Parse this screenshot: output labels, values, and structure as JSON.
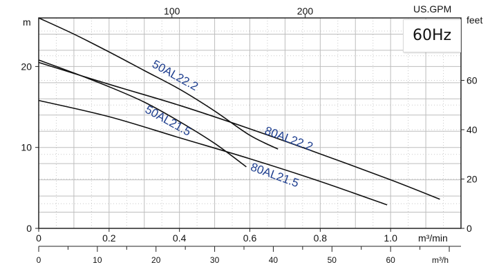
{
  "chart_data": {
    "type": "line",
    "frequency_label": "60Hz",
    "axes": {
      "y_left": {
        "label": "m",
        "ticks": [
          "0",
          "10",
          "20"
        ],
        "range": [
          0,
          26
        ]
      },
      "y_right": {
        "label": "feet",
        "ticks": [
          "0",
          "20",
          "40",
          "60"
        ]
      },
      "x_bottom_main": {
        "label": "m³/min",
        "ticks": [
          "0",
          "0.2",
          "0.4",
          "0.6",
          "0.8",
          "1.0"
        ],
        "range": [
          0,
          1.2
        ]
      },
      "x_bottom_secondary": {
        "label": "m³/h",
        "ticks": [
          "0",
          "10",
          "20",
          "30",
          "40",
          "50",
          "60"
        ]
      },
      "x_top": {
        "label": "US.GPM",
        "ticks": [
          "100",
          "200"
        ]
      }
    },
    "grid": true,
    "series": [
      {
        "name": "50AL22.2",
        "label": "50AL22.2",
        "color": "#1f2a44",
        "x": [
          0.0,
          0.1,
          0.2,
          0.3,
          0.4,
          0.5,
          0.6,
          0.68
        ],
        "y": [
          26.0,
          24.0,
          21.8,
          19.5,
          17.2,
          14.5,
          11.5,
          9.8
        ]
      },
      {
        "name": "50AL21.5",
        "label": "50AL21.5",
        "color": "#1f2a44",
        "x": [
          0.0,
          0.1,
          0.2,
          0.3,
          0.4,
          0.5,
          0.59
        ],
        "y": [
          20.8,
          19.2,
          17.5,
          15.6,
          13.2,
          10.5,
          7.6
        ]
      },
      {
        "name": "80AL22.2",
        "label": "80AL22.2",
        "color": "#1f2a44",
        "x": [
          0.0,
          0.2,
          0.4,
          0.6,
          0.8,
          1.0,
          1.14
        ],
        "y": [
          20.5,
          17.8,
          15.2,
          12.3,
          9.2,
          6.0,
          3.6
        ]
      },
      {
        "name": "80AL21.5",
        "label": "80AL21.5",
        "color": "#1f2a44",
        "x": [
          0.0,
          0.2,
          0.4,
          0.6,
          0.8,
          0.99
        ],
        "y": [
          15.8,
          13.8,
          11.2,
          8.6,
          5.8,
          2.9
        ]
      }
    ]
  }
}
